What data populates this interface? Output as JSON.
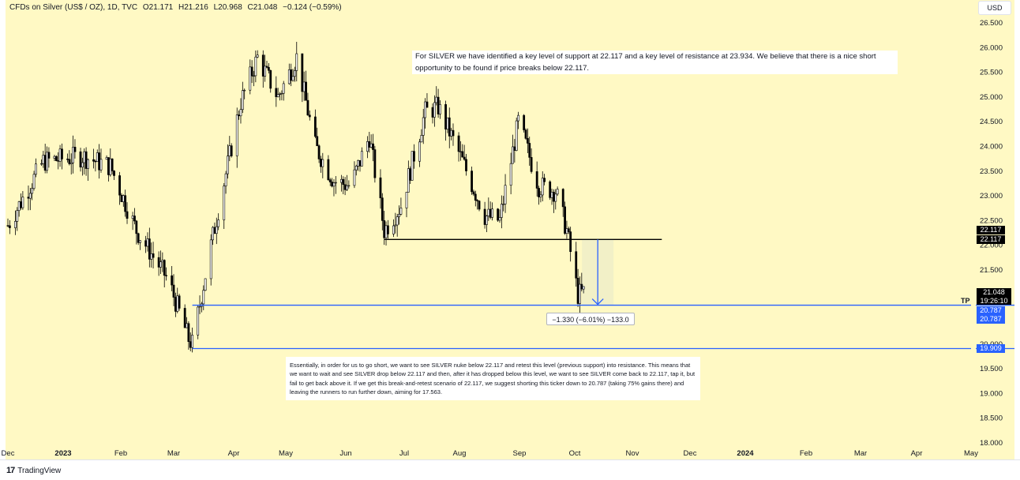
{
  "header": {
    "symbol": "CFDs on Silver (US$ / OZ), 1D, TVC",
    "open": "O21.171",
    "high": "H21.216",
    "low": "L20.968",
    "close": "C21.048",
    "change": "−0.124 (−0.59%)"
  },
  "currency": "USD",
  "footer": {
    "brand": "TradingView",
    "logo": "tradingview-logo-icon"
  },
  "annotations": {
    "note_top": "For SILVER we have identified a key level of support at 22.117 and a key level of resistance at 23.934. We believe that there is a nice short opportunity to be found if price breaks below 22.117.",
    "note_bottom": "Essentially, in order for us to go short, we want to see SILVER nuke below 22.117 and retest this level (previous support) into resistance. This means that we want to wait and see SILVER drop below 22.117 and then, after it has dropped below this level, we want to see SILVER come back to 22.117, tap it, but fail to get back above it. If we get this break-and-retest scenario of 22.117, we suggest shorting this ticker down to 20.787 (taking 75% gains there) and leaving the runners to run further down, aiming for 17.563.",
    "measure_label": "−1.330 (−6.01%) −133.0",
    "tp_label": "TP"
  },
  "price_labels": {
    "support_a": "22.117",
    "support_b": "22.117",
    "last": "21.048",
    "countdown": "19:26:10",
    "tp_a": "20.787",
    "tp_b": "20.787",
    "low_line": "19.909"
  },
  "colors": {
    "background": "#fff9c4",
    "candle_up": "#ffffff",
    "candle_down": "#000000",
    "candle_outline": "#000000",
    "blue_line": "#2962ff",
    "support_line": "#000000"
  },
  "chart_data": {
    "type": "candlestick",
    "title": "",
    "xlabel": "",
    "ylabel": "",
    "ylim": [
      18.0,
      26.8
    ],
    "y_ticks": [
      "26.500",
      "26.000",
      "25.500",
      "25.000",
      "24.500",
      "24.000",
      "23.500",
      "23.000",
      "22.500",
      "22.000",
      "21.500",
      "20.000",
      "19.500",
      "19.000",
      "18.500",
      "18.000"
    ],
    "x_ticks": [
      "Dec",
      "2023",
      "Feb",
      "Mar",
      "Apr",
      "May",
      "Jun",
      "Jul",
      "Aug",
      "Sep",
      "Oct",
      "Nov",
      "Dec",
      "2024",
      "Feb",
      "Mar",
      "Apr",
      "May"
    ],
    "x_range": [
      "2022-12-01",
      "2024-05-01"
    ],
    "levels": [
      {
        "name": "support",
        "value": 22.117,
        "from": "2023-06-21",
        "to": "2023-11-17"
      },
      {
        "name": "take-profit",
        "value": 20.787,
        "from": "2023-03-10",
        "to": "2024-05-01"
      },
      {
        "name": "low",
        "value": 19.909,
        "from": "2023-03-10",
        "to": "2024-05-01"
      }
    ],
    "measure": {
      "from_price": 22.117,
      "to_price": 20.787,
      "date": "2023-10-06"
    },
    "price_path": [
      [
        "2022-12-01",
        22.4
      ],
      [
        "2022-12-20",
        23.7
      ],
      [
        "2023-01-10",
        23.8
      ],
      [
        "2023-01-25",
        23.6
      ],
      [
        "2023-02-08",
        22.3
      ],
      [
        "2023-02-25",
        21.3
      ],
      [
        "2023-03-08",
        20.1
      ],
      [
        "2023-03-10",
        20.0
      ],
      [
        "2023-03-20",
        22.0
      ],
      [
        "2023-04-05",
        24.9
      ],
      [
        "2023-04-14",
        25.8
      ],
      [
        "2023-04-25",
        25.0
      ],
      [
        "2023-05-05",
        25.8
      ],
      [
        "2023-05-15",
        24.0
      ],
      [
        "2023-05-25",
        23.3
      ],
      [
        "2023-06-03",
        23.2
      ],
      [
        "2023-06-13",
        24.2
      ],
      [
        "2023-06-21",
        22.3
      ],
      [
        "2023-06-30",
        22.8
      ],
      [
        "2023-07-13",
        24.7
      ],
      [
        "2023-07-20",
        24.8
      ],
      [
        "2023-08-02",
        23.7
      ],
      [
        "2023-08-14",
        22.6
      ],
      [
        "2023-08-22",
        22.5
      ],
      [
        "2023-09-01",
        24.5
      ],
      [
        "2023-09-12",
        23.2
      ],
      [
        "2023-09-21",
        23.1
      ],
      [
        "2023-09-27",
        22.3
      ],
      [
        "2023-10-03",
        21.0
      ],
      [
        "2023-10-06",
        21.05
      ]
    ]
  }
}
